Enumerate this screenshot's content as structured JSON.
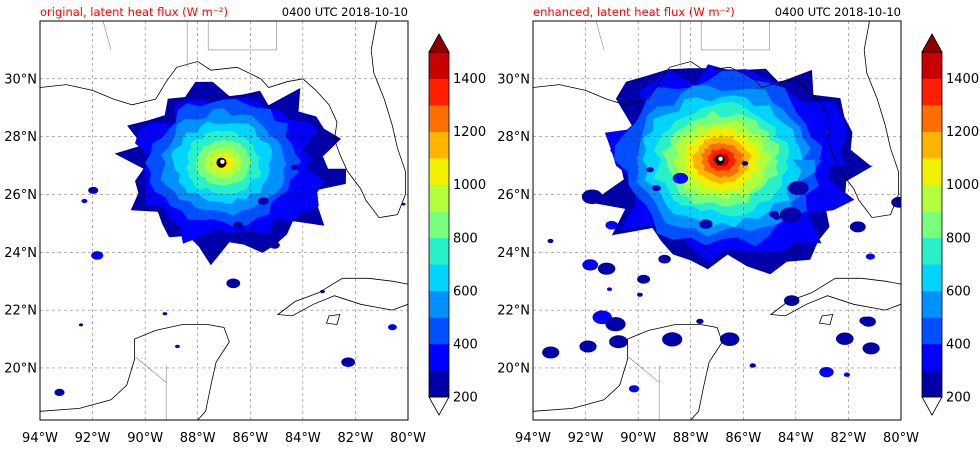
{
  "figure": {
    "background": "#ffffff"
  },
  "chart_data": [
    {
      "type": "map",
      "title_left": "original, latent heat flux (W m⁻²)",
      "title_right": "0400 UTC 2018-10-10",
      "title_color": "#ff0000",
      "xticks": [
        -94,
        -92,
        -90,
        -88,
        -86,
        -84,
        -82,
        -80
      ],
      "xtick_labels": [
        "94°W",
        "92°W",
        "90°W",
        "88°W",
        "86°W",
        "84°W",
        "82°W",
        "80°W"
      ],
      "yticks": [
        20,
        22,
        24,
        26,
        28,
        30
      ],
      "ytick_labels": [
        "20°N",
        "22°N",
        "24°N",
        "26°N",
        "28°N",
        "30°N"
      ],
      "xlim": [
        -94,
        -80
      ],
      "ylim": [
        18.2,
        32
      ],
      "grid": true,
      "storm": {
        "lon": -87.1,
        "lat": 27.1,
        "peak_flux": 1100,
        "outer_radius_deg": 3.4
      },
      "colorbar": {
        "levels": [
          200,
          300,
          400,
          500,
          600,
          700,
          800,
          900,
          1000,
          1100,
          1200,
          1300,
          1400,
          1500
        ],
        "tick_labels": [
          "200",
          "400",
          "600",
          "800",
          "1000",
          "1200",
          "1400"
        ],
        "extend": "both"
      }
    },
    {
      "type": "map",
      "title_left": "enhanced, latent heat flux (W m⁻²)",
      "title_right": "0400 UTC 2018-10-10",
      "title_color": "#ff0000",
      "xticks": [
        -94,
        -92,
        -90,
        -88,
        -86,
        -84,
        -82,
        -80
      ],
      "xtick_labels": [
        "94°W",
        "92°W",
        "90°W",
        "88°W",
        "86°W",
        "84°W",
        "82°W",
        "80°W"
      ],
      "yticks": [
        20,
        22,
        24,
        26,
        28,
        30
      ],
      "ytick_labels": [
        "20°N",
        "22°N",
        "24°N",
        "26°N",
        "28°N",
        "30°N"
      ],
      "xlim": [
        -94,
        -80
      ],
      "ylim": [
        18.2,
        32
      ],
      "grid": true,
      "storm": {
        "lon": -86.9,
        "lat": 27.2,
        "peak_flux": 1450,
        "outer_radius_deg": 4.2
      },
      "colorbar": {
        "levels": [
          200,
          300,
          400,
          500,
          600,
          700,
          800,
          900,
          1000,
          1100,
          1200,
          1300,
          1400,
          1500
        ],
        "tick_labels": [
          "200",
          "400",
          "600",
          "800",
          "1000",
          "1200",
          "1400"
        ],
        "extend": "both"
      }
    }
  ],
  "colormap": [
    "#0000a8",
    "#0000ff",
    "#0050ff",
    "#0090ff",
    "#00d4ff",
    "#28f0c8",
    "#78ff7c",
    "#b4ff3c",
    "#f0f000",
    "#ffb400",
    "#ff6e00",
    "#ff1e00",
    "#c80000",
    "#8c0000"
  ]
}
